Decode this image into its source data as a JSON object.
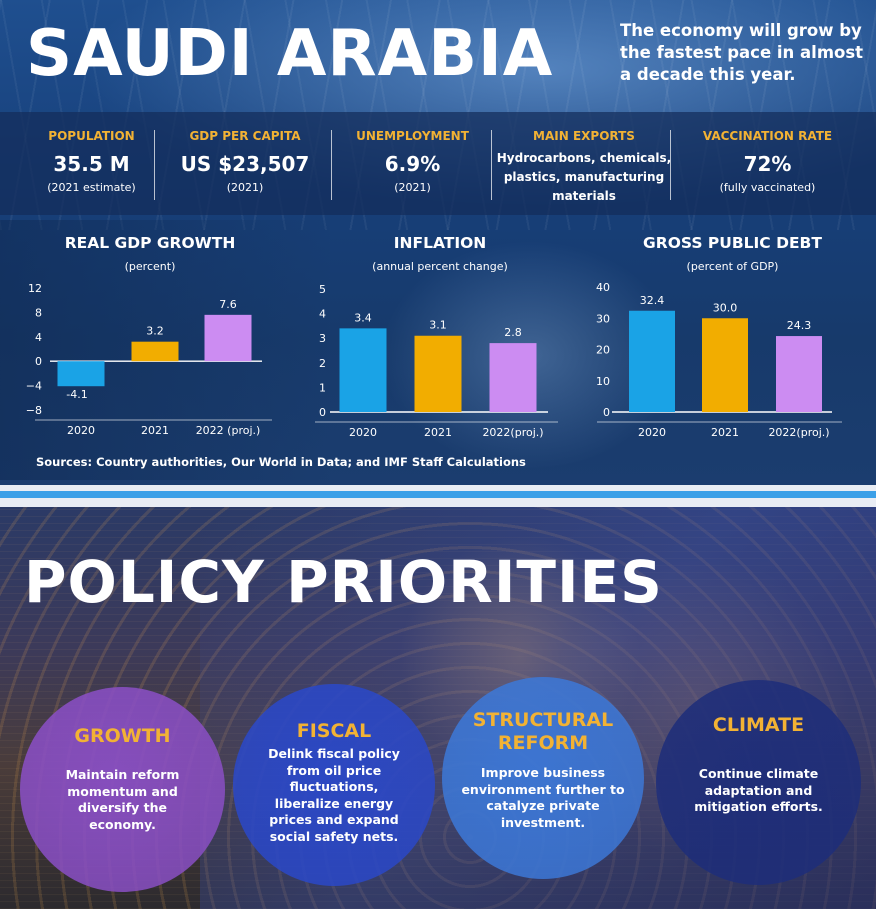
{
  "header": {
    "title": "SAUDI ARABIA",
    "subtitle": "The economy will grow by the fastest pace in almost a decade this year."
  },
  "stats": [
    {
      "label": "POPULATION",
      "value": "35.5 M",
      "note": "(2021 estimate)"
    },
    {
      "label": "GDP PER CAPITA",
      "value": "US $23,507",
      "note": "(2021)"
    },
    {
      "label": "UNEMPLOYMENT",
      "value": "6.9%",
      "note": "(2021)"
    },
    {
      "label": "MAIN EXPORTS",
      "lines": [
        "Hydrocarbons, chemicals,",
        "plastics, manufacturing",
        "materials"
      ]
    },
    {
      "label": "VACCINATION RATE",
      "value": "72%",
      "note": "(fully vaccinated)"
    }
  ],
  "chart_data": [
    {
      "type": "bar",
      "title": "REAL GDP GROWTH",
      "subtitle": "(percent)",
      "categories": [
        "2020",
        "2021",
        "2022 (proj.)"
      ],
      "values": [
        -4.1,
        3.2,
        7.6
      ],
      "value_labels": [
        "-4.1",
        "3.2",
        "7.6"
      ],
      "yticks": [
        "12",
        "8",
        "4",
        "0",
        "−4",
        "−8"
      ],
      "ylim": [
        -8,
        12
      ],
      "colors": [
        "#1aa3e6",
        "#f2ad00",
        "#cc8cf2"
      ],
      "grid": false
    },
    {
      "type": "bar",
      "title": "INFLATION",
      "subtitle": "(annual percent change)",
      "categories": [
        "2020",
        "2021",
        "2022(proj.)"
      ],
      "values": [
        3.4,
        3.1,
        2.8
      ],
      "value_labels": [
        "3.4",
        "3.1",
        "2.8"
      ],
      "yticks": [
        "5",
        "4",
        "3",
        "2",
        "1",
        "0"
      ],
      "ylim": [
        0,
        5
      ],
      "colors": [
        "#1aa3e6",
        "#f2ad00",
        "#cc8cf2"
      ],
      "grid": false
    },
    {
      "type": "bar",
      "title": "GROSS PUBLIC DEBT",
      "subtitle": "(percent of GDP)",
      "categories": [
        "2020",
        "2021",
        "2022(proj.)"
      ],
      "values": [
        32.4,
        30.0,
        24.3
      ],
      "value_labels": [
        "32.4",
        "30.0",
        "24.3"
      ],
      "yticks": [
        "40",
        "30",
        "20",
        "10",
        "0"
      ],
      "ylim": [
        0,
        40
      ],
      "colors": [
        "#1aa3e6",
        "#f2ad00",
        "#cc8cf2"
      ],
      "grid": false
    }
  ],
  "sources": "Sources: Country authorities, Our World in Data; and IMF Staff Calculations",
  "policy": {
    "title": "POLICY PRIORITIES",
    "items": [
      {
        "title": [
          "GROWTH"
        ],
        "lines": [
          "Maintain reform",
          "momentum and",
          "diversify the",
          "economy."
        ],
        "color": "#8a4fc6"
      },
      {
        "title": [
          "FISCAL"
        ],
        "lines": [
          "Delink fiscal policy",
          "from oil price",
          "fluctuations,",
          "liberalize energy",
          "prices and expand",
          "social safety nets."
        ],
        "color": "#2a48c9"
      },
      {
        "title": [
          "STRUCTURAL",
          "REFORM"
        ],
        "lines": [
          "Improve business",
          "environment further to",
          "catalyze private",
          "investment."
        ],
        "color": "#3c78d8"
      },
      {
        "title": [
          "CLIMATE"
        ],
        "lines": [
          "Continue climate",
          "adaptation and",
          "mitigation efforts."
        ],
        "color": "#1d2d7a"
      }
    ]
  }
}
